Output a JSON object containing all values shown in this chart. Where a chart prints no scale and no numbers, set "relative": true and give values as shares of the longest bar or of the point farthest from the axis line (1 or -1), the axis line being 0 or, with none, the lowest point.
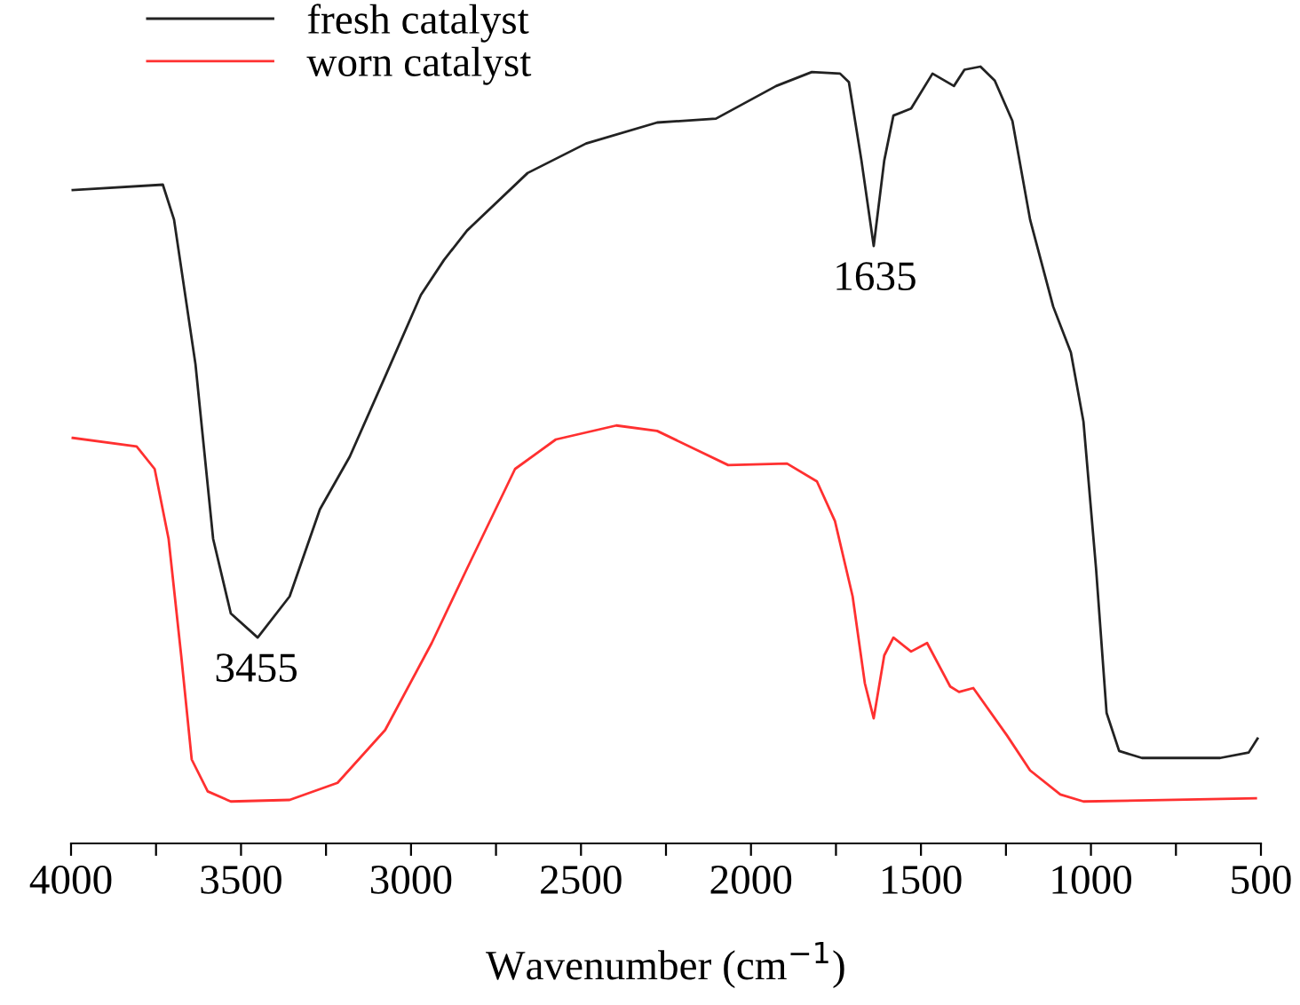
{
  "chart_data": {
    "type": "line",
    "relative": true,
    "xlabel": "Wavenumber (cm$^{−1}$)",
    "xlim": [
      4000,
      500
    ],
    "xticks": [
      4000,
      {
        "value": 3750,
        "label": null
      },
      3500,
      {
        "value": 3250,
        "label": null
      },
      3000,
      {
        "value": 2750,
        "label": null
      },
      2500,
      {
        "value": 2250,
        "label": null
      },
      2000,
      {
        "value": 1750,
        "label": null
      },
      1500,
      {
        "value": 1250,
        "label": null
      },
      1000,
      {
        "value": 750,
        "label": null
      },
      500
    ],
    "legend": "top left",
    "grid": false,
    "marker": "none",
    "line_style": "solid",
    "annotations": [
      {
        "text": "3455",
        "x": 3455,
        "y": 0.265
      },
      {
        "text": "1635",
        "x": 1635,
        "y": 0.769
      }
    ],
    "series": [
      {
        "name": "fresh catalyst",
        "color": "#222222",
        "x": [
          3995,
          3730,
          3697,
          3634,
          3582,
          3530,
          3451,
          3357,
          3268,
          3180,
          3076,
          2971,
          2903,
          2835,
          2657,
          2485,
          2276,
          2103,
          1926,
          1821,
          1738,
          1712,
          1675,
          1639,
          1608,
          1581,
          1529,
          1466,
          1403,
          1372,
          1325,
          1283,
          1231,
          1179,
          1111,
          1059,
          1022,
          985,
          954,
          917,
          850,
          620,
          536,
          510
        ],
        "values": [
          0.841,
          0.848,
          0.803,
          0.617,
          0.392,
          0.296,
          0.265,
          0.318,
          0.43,
          0.498,
          0.601,
          0.706,
          0.751,
          0.789,
          0.863,
          0.901,
          0.928,
          0.933,
          0.975,
          0.993,
          0.991,
          0.98,
          0.879,
          0.769,
          0.879,
          0.937,
          0.946,
          0.991,
          0.975,
          0.996,
          1.0,
          0.982,
          0.93,
          0.803,
          0.691,
          0.632,
          0.543,
          0.354,
          0.168,
          0.119,
          0.11,
          0.11,
          0.117,
          0.135
        ]
      },
      {
        "name": "worn catalyst",
        "color": "#ff3030",
        "x": [
          3995,
          3807,
          3754,
          3713,
          3676,
          3645,
          3598,
          3530,
          3357,
          3216,
          3076,
          2939,
          2835,
          2694,
          2574,
          2396,
          2276,
          2067,
          1894,
          1806,
          1753,
          1701,
          1665,
          1639,
          1608,
          1581,
          1529,
          1482,
          1414,
          1388,
          1346,
          1247,
          1179,
          1090,
          1022,
          515
        ],
        "values": [
          0.522,
          0.511,
          0.482,
          0.392,
          0.242,
          0.108,
          0.067,
          0.054,
          0.056,
          0.078,
          0.146,
          0.258,
          0.354,
          0.482,
          0.52,
          0.538,
          0.531,
          0.487,
          0.489,
          0.466,
          0.415,
          0.318,
          0.206,
          0.161,
          0.242,
          0.265,
          0.247,
          0.258,
          0.202,
          0.195,
          0.2,
          0.139,
          0.094,
          0.063,
          0.054,
          0.058
        ]
      }
    ]
  }
}
